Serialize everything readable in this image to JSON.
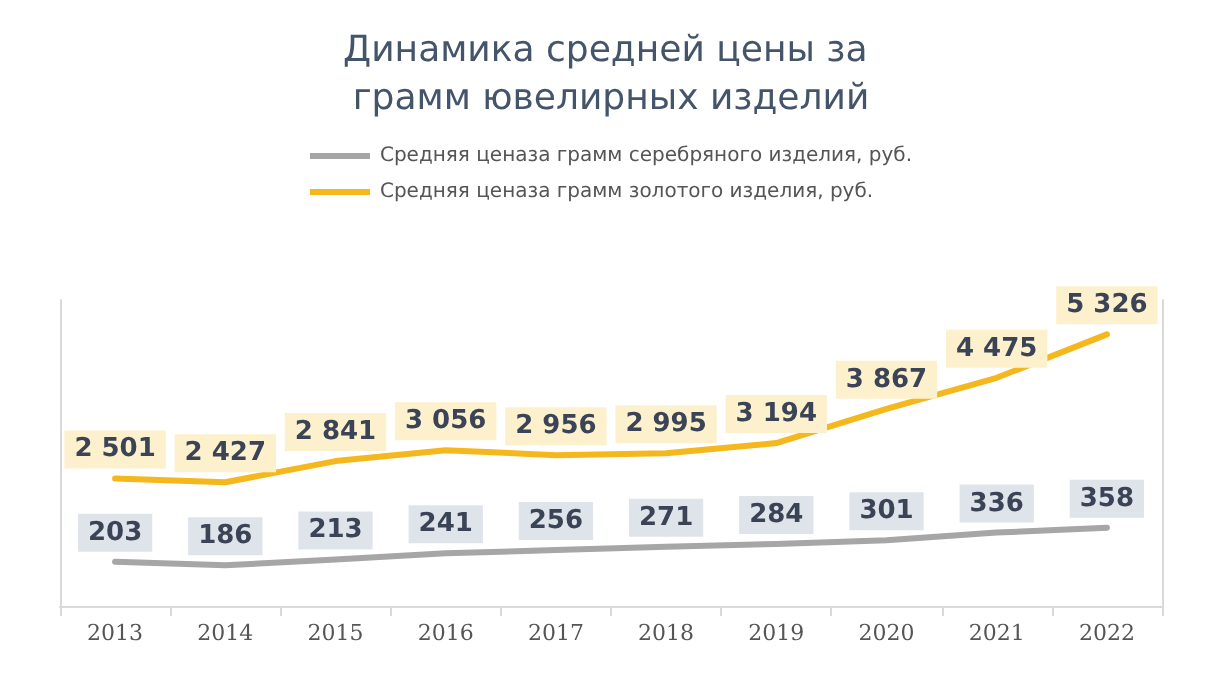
{
  "chart_data": {
    "type": "line",
    "title": "Динамика средней цены за грамм ювелирных изделий",
    "categories": [
      "2013",
      "2014",
      "2015",
      "2016",
      "2017",
      "2018",
      "2019",
      "2020",
      "2021",
      "2022"
    ],
    "series": [
      {
        "name": "Средняя ценаза грамм серебряного изделия, руб.",
        "color": "#a6a6a6",
        "axis": "y2",
        "values": [
          203,
          186,
          213,
          241,
          256,
          271,
          284,
          301,
          336,
          358
        ],
        "value_labels": [
          "203",
          "186",
          "213",
          "241",
          "256",
          "271",
          "284",
          "301",
          "336",
          "358"
        ]
      },
      {
        "name": "Средняя ценаза грамм золотого изделия, руб.",
        "color": "#f4b81c",
        "values": [
          2501,
          2427,
          2841,
          3056,
          2956,
          2995,
          3194,
          3867,
          4475,
          5326
        ],
        "value_labels": [
          "2 501",
          "2 427",
          "2 841",
          "3 056",
          "2 956",
          "2 995",
          "3 194",
          "3 867",
          "4 475",
          "5 326"
        ]
      }
    ],
    "ylim": [
      0,
      6000
    ],
    "y2lim": [
      0,
      1400
    ],
    "tick_labels": "x",
    "grid": false,
    "legend": "top"
  }
}
